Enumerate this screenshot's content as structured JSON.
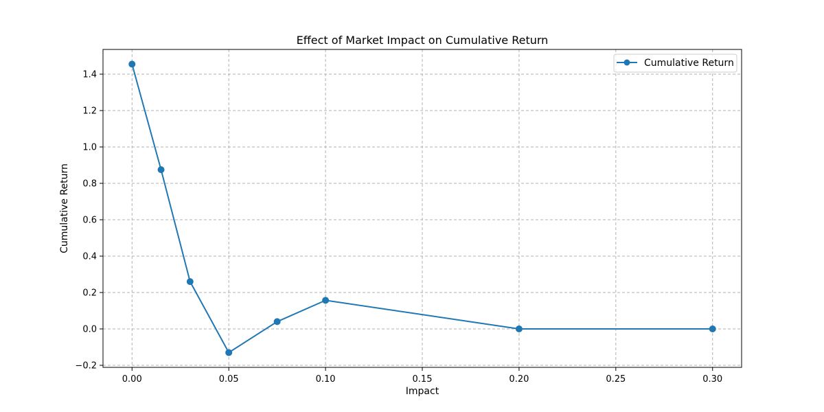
{
  "chart_data": {
    "type": "line",
    "title": "Effect of Market Impact on Cumulative Return",
    "xlabel": "Impact",
    "ylabel": "Cumulative Return",
    "xlim": [
      -0.015,
      0.315
    ],
    "ylim": [
      -0.2,
      1.53
    ],
    "xticks": [
      0.0,
      0.05,
      0.1,
      0.15,
      0.2,
      0.25,
      0.3
    ],
    "xtick_labels": [
      "0.00",
      "0.05",
      "0.10",
      "0.15",
      "0.20",
      "0.25",
      "0.30"
    ],
    "yticks": [
      -0.2,
      0.0,
      0.2,
      0.4,
      0.6,
      0.8,
      1.0,
      1.2,
      1.4
    ],
    "ytick_labels": [
      "−0.2",
      "0.0",
      "0.2",
      "0.4",
      "0.6",
      "0.8",
      "1.0",
      "1.2",
      "1.4"
    ],
    "grid": true,
    "legend_position": "top-right",
    "series": [
      {
        "name": "Cumulative Return",
        "color": "#1f77b4",
        "marker": "circle",
        "x": [
          0.0,
          0.015,
          0.03,
          0.05,
          0.075,
          0.1,
          0.2,
          0.3
        ],
        "y": [
          1.455,
          0.875,
          0.26,
          -0.13,
          0.04,
          0.157,
          0.0,
          0.0
        ]
      }
    ]
  }
}
